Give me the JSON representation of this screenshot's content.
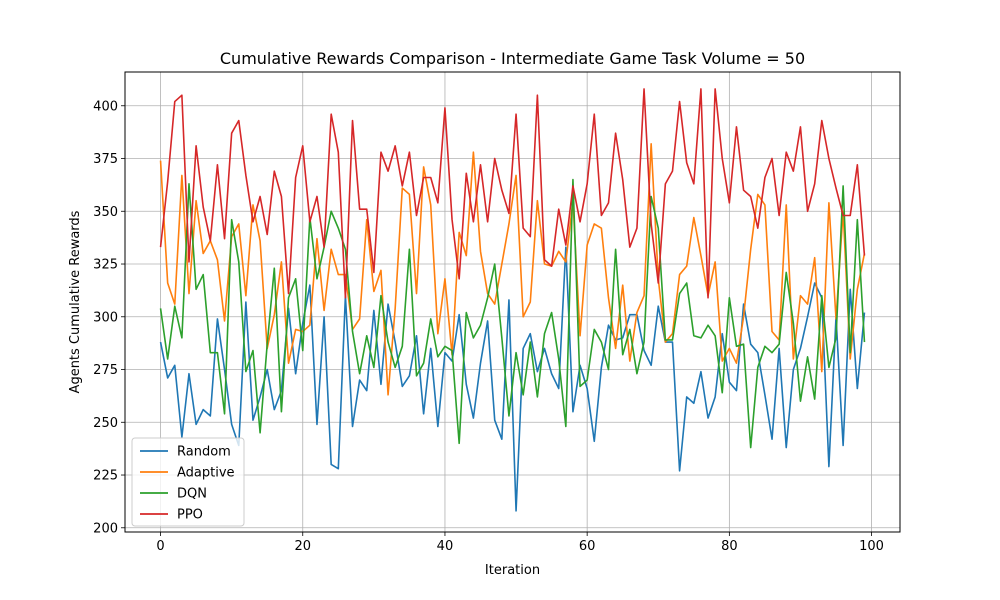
{
  "chart_data": {
    "type": "line",
    "title": "Cumulative Rewards Comparison - Intermediate Game Task Volume = 50",
    "xlabel": "Iteration",
    "ylabel": "Agents Cumulative Rewards",
    "xlim": [
      -5,
      104
    ],
    "ylim": [
      198,
      416
    ],
    "xticks": [
      0,
      20,
      40,
      60,
      80,
      100
    ],
    "yticks": [
      200,
      225,
      250,
      275,
      300,
      325,
      350,
      375,
      400
    ],
    "grid": true,
    "legend_position": "lower-left",
    "x": [
      0,
      1,
      2,
      3,
      4,
      5,
      6,
      7,
      8,
      9,
      10,
      11,
      12,
      13,
      14,
      15,
      16,
      17,
      18,
      19,
      20,
      21,
      22,
      23,
      24,
      25,
      26,
      27,
      28,
      29,
      30,
      31,
      32,
      33,
      34,
      35,
      36,
      37,
      38,
      39,
      40,
      41,
      42,
      43,
      44,
      45,
      46,
      47,
      48,
      49,
      50,
      51,
      52,
      53,
      54,
      55,
      56,
      57,
      58,
      59,
      60,
      61,
      62,
      63,
      64,
      65,
      66,
      67,
      68,
      69,
      70,
      71,
      72,
      73,
      74,
      75,
      76,
      77,
      78,
      79,
      80,
      81,
      82,
      83,
      84,
      85,
      86,
      87,
      88,
      89,
      90,
      91,
      92,
      93,
      94,
      95,
      96,
      97,
      98,
      99
    ],
    "series": [
      {
        "name": "Random",
        "color": "#1f77b4",
        "values": [
          288,
          271,
          277,
          243,
          273,
          249,
          256,
          253,
          299,
          275,
          249,
          239,
          307,
          251,
          262,
          275,
          256,
          265,
          304,
          273,
          297,
          315,
          249,
          300,
          230,
          228,
          310,
          248,
          270,
          265,
          303,
          268,
          306,
          288,
          267,
          272,
          291,
          254,
          285,
          248,
          283,
          279,
          301,
          268,
          252,
          278,
          298,
          251,
          242,
          308,
          208,
          285,
          292,
          274,
          285,
          273,
          266,
          333,
          255,
          277,
          266,
          241,
          276,
          296,
          289,
          290,
          301,
          301,
          284,
          277,
          305,
          288,
          288,
          227,
          262,
          259,
          274,
          252,
          262,
          292,
          269,
          265,
          306,
          287,
          283,
          263,
          242,
          285,
          238,
          275,
          285,
          300,
          316,
          309,
          229,
          300,
          239,
          313,
          266,
          302
        ]
      },
      {
        "name": "Adaptive",
        "color": "#ff7f0e",
        "values": [
          374,
          316,
          306,
          367,
          311,
          355,
          330,
          336,
          327,
          298,
          338,
          344,
          310,
          353,
          336,
          285,
          301,
          326,
          278,
          294,
          293,
          296,
          337,
          303,
          332,
          320,
          320,
          294,
          299,
          346,
          312,
          322,
          263,
          304,
          361,
          358,
          311,
          371,
          353,
          292,
          318,
          282,
          340,
          329,
          378,
          331,
          311,
          306,
          325,
          344,
          367,
          300,
          307,
          355,
          325,
          324,
          331,
          326,
          355,
          291,
          334,
          344,
          342,
          309,
          285,
          315,
          279,
          302,
          310,
          382,
          318,
          288,
          292,
          320,
          324,
          347,
          329,
          310,
          326,
          279,
          285,
          278,
          300,
          332,
          358,
          353,
          293,
          289,
          353,
          280,
          310,
          306,
          328,
          274,
          354,
          299,
          350,
          280,
          313,
          330
        ]
      },
      {
        "name": "DQN",
        "color": "#2ca02c",
        "values": [
          304,
          280,
          305,
          290,
          363,
          313,
          320,
          283,
          283,
          254,
          346,
          326,
          274,
          284,
          245,
          287,
          323,
          255,
          309,
          318,
          284,
          347,
          318,
          333,
          350,
          342,
          332,
          293,
          273,
          291,
          276,
          310,
          288,
          276,
          286,
          332,
          272,
          278,
          299,
          281,
          286,
          284,
          240,
          302,
          290,
          296,
          309,
          325,
          290,
          253,
          283,
          263,
          288,
          262,
          292,
          302,
          280,
          248,
          365,
          267,
          270,
          294,
          288,
          275,
          332,
          282,
          294,
          273,
          288,
          357,
          342,
          289,
          289,
          311,
          316,
          291,
          290,
          296,
          291,
          264,
          309,
          286,
          287,
          238,
          276,
          286,
          283,
          287,
          321,
          297,
          260,
          281,
          261,
          310,
          276,
          290,
          362,
          283,
          346,
          288
        ]
      },
      {
        "name": "PPO",
        "color": "#d62728",
        "values": [
          333,
          364,
          402,
          405,
          326,
          381,
          352,
          336,
          372,
          337,
          387,
          393,
          367,
          345,
          357,
          339,
          369,
          357,
          311,
          366,
          381,
          345,
          357,
          333,
          396,
          378,
          309,
          393,
          351,
          351,
          321,
          378,
          369,
          381,
          362,
          378,
          348,
          366,
          366,
          354,
          399,
          346,
          318,
          368,
          345,
          372,
          345,
          375,
          360,
          349,
          396,
          342,
          338,
          405,
          327,
          324,
          351,
          334,
          362,
          345,
          363,
          396,
          348,
          354,
          387,
          365,
          333,
          342,
          408,
          344,
          316,
          363,
          369,
          402,
          373,
          363,
          408,
          309,
          408,
          375,
          354,
          390,
          360,
          357,
          342,
          366,
          375,
          348,
          378,
          369,
          390,
          350,
          363,
          393,
          375,
          361,
          348,
          348,
          372,
          329
        ]
      }
    ]
  }
}
